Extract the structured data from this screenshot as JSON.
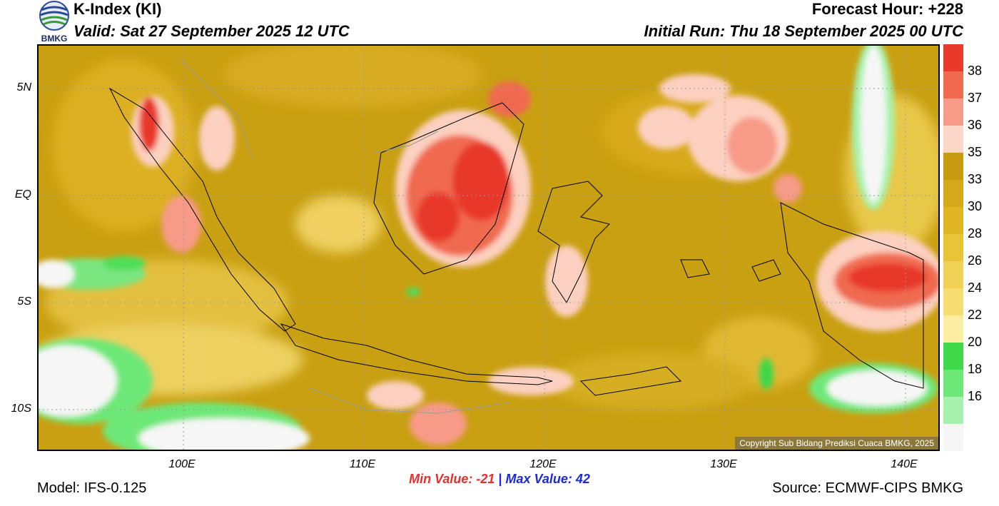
{
  "header": {
    "title": "K-Index (KI)",
    "valid": "Valid: Sat 27 September 2025 12 UTC",
    "forecast_hour": "Forecast Hour: +228",
    "initial_run": "Initial Run: Thu 18 September 2025 00 UTC"
  },
  "logo": {
    "text": "BMKG"
  },
  "map": {
    "lat_labels": [
      "5N",
      "EQ",
      "5S",
      "10S"
    ],
    "lon_labels": [
      "100E",
      "110E",
      "120E",
      "130E",
      "140E"
    ],
    "copyright": "Copyright Sub Bidang Prediksi Cuaca BMKG, 2025"
  },
  "colorbar": {
    "ticks": [
      "38",
      "37",
      "36",
      "35",
      "33",
      "30",
      "28",
      "26",
      "24",
      "22",
      "20",
      "18",
      "16"
    ],
    "colors": [
      "#e8392a",
      "#f06a50",
      "#f89a88",
      "#fcd7c8",
      "#c89a10",
      "#d4a818",
      "#e0b522",
      "#e9c436",
      "#f0d155",
      "#f5dd72",
      "#fbeea0",
      "#3ed84a",
      "#6ee878",
      "#a6f2ac",
      "#f6f6f6"
    ]
  },
  "stats": {
    "min": "Min Value: -21",
    "sep": "|",
    "max": "Max Value:  42"
  },
  "footer": {
    "model": "Model: IFS-0.125",
    "source": "Source: ECMWF-CIPS BMKG"
  }
}
